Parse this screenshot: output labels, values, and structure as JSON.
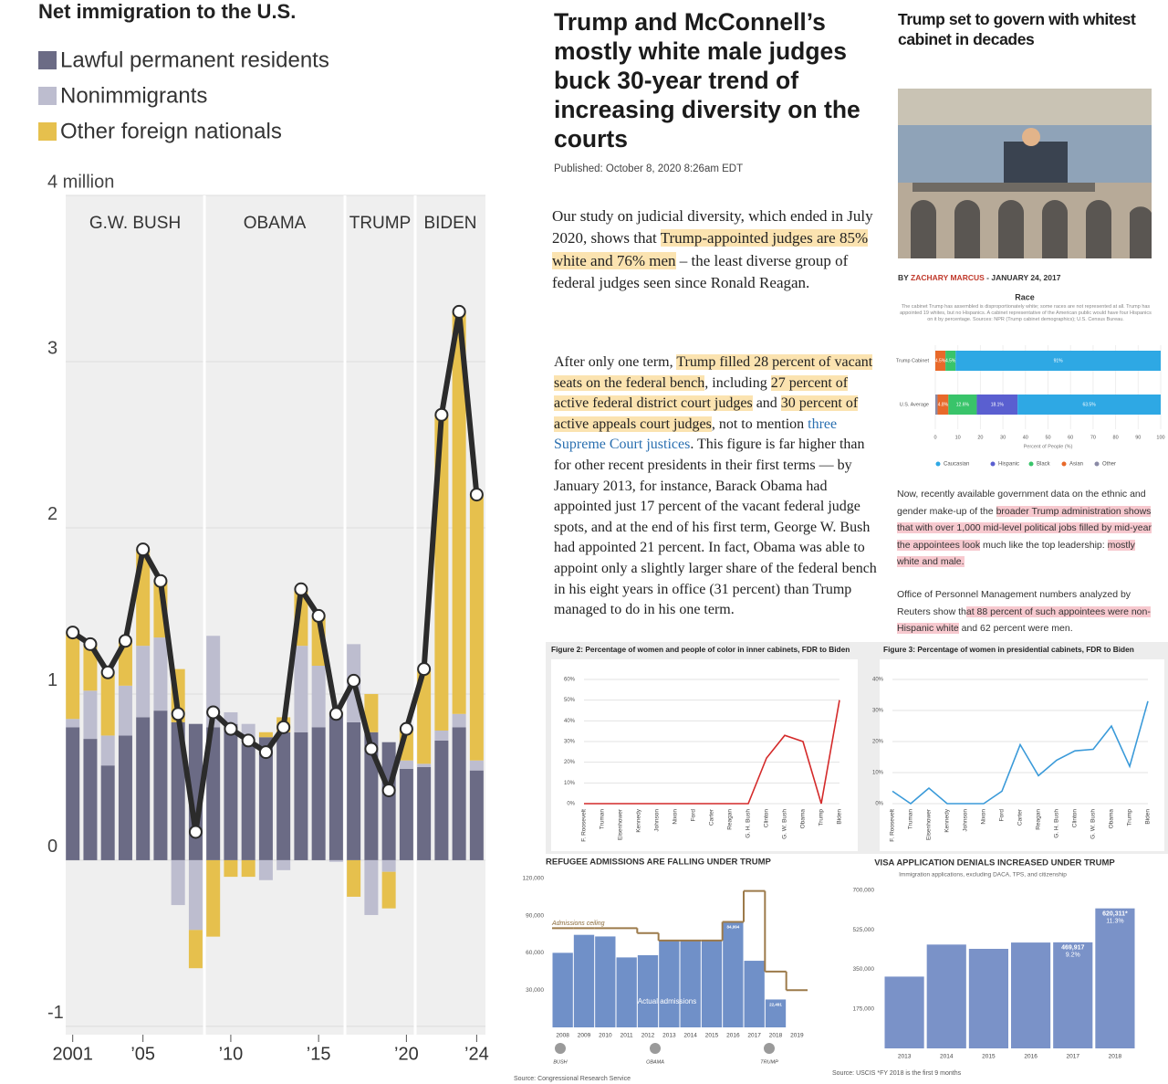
{
  "chart_data": [
    {
      "type": "stacked-bar",
      "title": "Net immigration to the U.S.",
      "x": [
        2001,
        2002,
        2003,
        2004,
        2005,
        2006,
        2007,
        2008,
        2009,
        2010,
        2011,
        2012,
        2013,
        2014,
        2015,
        2016,
        2017,
        2018,
        2019,
        2020,
        2021,
        2022,
        2023,
        2024
      ],
      "series": [
        {
          "name": "Lawful permanent residents",
          "color": "#6b6b85",
          "values": [
            0.8,
            0.73,
            0.57,
            0.75,
            0.86,
            0.9,
            0.83,
            0.82,
            0.8,
            0.82,
            0.7,
            0.74,
            0.77,
            0.77,
            0.8,
            0.88,
            0.83,
            0.77,
            0.71,
            0.55,
            0.56,
            0.72,
            0.8,
            0.54
          ]
        },
        {
          "name": "Nonimmigrants",
          "color": "#bdbdcf",
          "values": [
            0.05,
            0.29,
            0.18,
            0.3,
            0.43,
            0.44,
            -0.27,
            -0.42,
            0.55,
            0.07,
            0.12,
            -0.12,
            -0.06,
            0.52,
            0.37,
            -0.01,
            0.47,
            -0.33,
            -0.07,
            0.05,
            0.02,
            0.06,
            0.08,
            0.06
          ]
        },
        {
          "name": "Other foreign nationals",
          "color": "#e6c04d",
          "values": [
            0.52,
            0.28,
            0.38,
            0.27,
            0.58,
            0.34,
            0.32,
            -0.23,
            -0.46,
            -0.1,
            -0.1,
            0.03,
            0.09,
            0.33,
            0.3,
            0.01,
            -0.22,
            0.23,
            -0.22,
            0.19,
            0.57,
            1.9,
            2.42,
            1.6
          ]
        }
      ],
      "line": {
        "color": "#2b2b2b",
        "values": [
          1.37,
          1.3,
          1.13,
          1.32,
          1.87,
          1.68,
          0.88,
          0.17,
          0.89,
          0.79,
          0.72,
          0.65,
          0.8,
          1.63,
          1.47,
          0.88,
          1.08,
          0.67,
          0.42,
          0.79,
          1.15,
          2.68,
          3.3,
          2.2
        ]
      },
      "eras": [
        {
          "label": "G.W. BUSH",
          "start": 2000.6,
          "end": 2008.5
        },
        {
          "label": "OBAMA",
          "start": 2008.5,
          "end": 2016.5
        },
        {
          "label": "TRUMP",
          "start": 2016.5,
          "end": 2020.5
        },
        {
          "label": "BIDEN",
          "start": 2020.5,
          "end": 2024.5
        }
      ],
      "xlim": [
        2000.6,
        2024.5
      ],
      "xticks": [
        2001,
        {
          "value": 2005,
          "label": "’05"
        },
        {
          "value": 2010,
          "label": "’10"
        },
        {
          "value": 2015,
          "label": "’15"
        },
        {
          "value": 2020,
          "label": "’20"
        },
        {
          "value": 2024,
          "label": "’24"
        }
      ],
      "ylim": [
        -1.05,
        4
      ],
      "yticks": [
        -1,
        0,
        1,
        2,
        3,
        {
          "value": 4,
          "label": "4 million"
        }
      ],
      "grid": true
    },
    {
      "type": "hbar-stacked",
      "title": "Race",
      "caption": "The cabinet Trump has assembled is disproportionately white; some races are not represented at all. Trump has appointed 19 whites, but no Hispanics. A cabinet representative of the American public would have four Hispanics on it by percentage. Sources: NPR (Trump cabinet demographics); U.S. Census Bureau.",
      "categories": [
        "Trump Cabinet",
        "U.S. Average"
      ],
      "series": [
        {
          "name": "Caucasian",
          "color": "#2ea8e4",
          "values": [
            91,
            63.5
          ],
          "value_labels": [
            "91%",
            "63.5%"
          ]
        },
        {
          "name": "Hispanic",
          "color": "#5a5fd0",
          "values": [
            0,
            18.1
          ],
          "value_labels": [
            null,
            "18.1%"
          ]
        },
        {
          "name": "Black",
          "color": "#39c46a",
          "values": [
            4.5,
            12.6
          ],
          "value_labels": [
            "4.5%",
            "12.6%"
          ]
        },
        {
          "name": "Asian",
          "color": "#e8692a",
          "values": [
            4.5,
            4.8
          ],
          "value_labels": [
            "4.5%",
            "4.8%"
          ]
        },
        {
          "name": "Other",
          "color": "#8a8aa6",
          "values": [
            0,
            1
          ],
          "value_labels": [
            null,
            null
          ]
        }
      ],
      "xlabel": "Percent of People (%)",
      "xlim": [
        0,
        100
      ],
      "xticks": [
        0,
        10,
        20,
        30,
        40,
        50,
        60,
        70,
        80,
        90,
        100
      ]
    },
    {
      "type": "line",
      "title": "Figure 2: Percentage of women and people of color in inner cabinets, FDR to Biden",
      "categories": [
        "F. Roosevelt",
        "Truman",
        "Eisenhower",
        "Kennedy",
        "Johnson",
        "Nixon",
        "Ford",
        "Carter",
        "Reagan",
        "G. H. Bush",
        "Clinton",
        "G. W. Bush",
        "Obama",
        "Trump",
        "Biden"
      ],
      "color": "#d42a2a",
      "values": [
        0,
        0,
        0,
        0,
        0,
        0,
        0,
        0,
        0,
        0,
        22,
        33,
        30,
        0,
        50
      ],
      "ylim": [
        0,
        60
      ],
      "yticks": [
        {
          "value": 0,
          "label": "0%"
        },
        {
          "value": 10,
          "label": "10%"
        },
        {
          "value": 20,
          "label": "20%"
        },
        {
          "value": 30,
          "label": "30%"
        },
        {
          "value": 40,
          "label": "40%"
        },
        {
          "value": 50,
          "label": "50%"
        },
        {
          "value": 60,
          "label": "60%"
        }
      ],
      "grid": true
    },
    {
      "type": "line",
      "title": "Figure 3: Percentage of women in presidential cabinets, FDR to Biden",
      "categories": [
        "F. Roosevelt",
        "Truman",
        "Eisenhower",
        "Kennedy",
        "Johnson",
        "Nixon",
        "Ford",
        "Carter",
        "Reagan",
        "G. H. Bush",
        "Clinton",
        "G. W. Bush",
        "Obama",
        "Trump",
        "Biden"
      ],
      "color": "#3a9ad9",
      "values": [
        4,
        0,
        5,
        0,
        0,
        0,
        4,
        19,
        9,
        14,
        17,
        17.5,
        25,
        12,
        33
      ],
      "ylim": [
        0,
        40
      ],
      "yticks": [
        {
          "value": 0,
          "label": "0%"
        },
        {
          "value": 10,
          "label": "10%"
        },
        {
          "value": 20,
          "label": "20%"
        },
        {
          "value": 30,
          "label": "30%"
        },
        {
          "value": 40,
          "label": "40%"
        }
      ],
      "grid": true
    },
    {
      "type": "bar",
      "title": "REFUGEE ADMISSIONS ARE FALLING UNDER TRUMP",
      "categories": [
        "2008",
        "2009",
        "2010",
        "2011",
        "2012",
        "2013",
        "2014",
        "2015",
        "2016",
        "2017",
        "2018",
        "2019"
      ],
      "color": "#7090c8",
      "values": [
        60100,
        74600,
        73300,
        56400,
        58200,
        69900,
        70000,
        70000,
        84994,
        53700,
        22491,
        null
      ],
      "value_labels": [
        null,
        null,
        null,
        null,
        null,
        null,
        null,
        null,
        "84,994",
        null,
        "22,491",
        null
      ],
      "step_line": {
        "name": "Admissions ceiling",
        "color": "#9c7a4a",
        "values": [
          80000,
          80000,
          80000,
          80000,
          76000,
          70000,
          70000,
          70000,
          85000,
          110000,
          45000,
          30000
        ]
      },
      "bar_label": "Actual admissions",
      "presidents": [
        "BUSH",
        "OBAMA",
        "TRUMP"
      ],
      "source": "Source: Congressional Research Service",
      "ylim": [
        0,
        120000
      ],
      "yticks": [
        {
          "value": 30000,
          "label": "30,000"
        },
        {
          "value": 60000,
          "label": "60,000"
        },
        {
          "value": 90000,
          "label": "90,000"
        },
        {
          "value": 120000,
          "label": "120,000"
        }
      ],
      "grid": false
    },
    {
      "type": "bar",
      "title": "VISA APPLICATION DENIALS INCREASED UNDER TRUMP",
      "subtitle": "Immigration applications, excluding DACA, TPS, and citizenship",
      "categories": [
        "2013",
        "2014",
        "2015",
        "2016",
        "2017",
        "2018"
      ],
      "color": "#7a92c8",
      "values": [
        318000,
        460000,
        441000,
        469000,
        469917,
        620311
      ],
      "value_labels": [
        null,
        null,
        null,
        null,
        "469,917",
        "620,311*"
      ],
      "share_labels": [
        null,
        null,
        null,
        null,
        "9.2%",
        "11.3%"
      ],
      "source": "Source: USCIS *FY 2018 is the first 9 months",
      "ylim": [
        0,
        700000
      ],
      "yticks": [
        {
          "value": 175000,
          "label": "175,000"
        },
        {
          "value": 350000,
          "label": "350,000"
        },
        {
          "value": 525000,
          "label": "525,000"
        },
        {
          "value": 700000,
          "label": "700,000"
        }
      ],
      "grid": false
    }
  ],
  "article": {
    "headline": "Trump and McConnell’s mostly white male judges buck 30-year trend of increasing diversity on the courts",
    "published": "Published: October 8, 2020 8:26am EDT",
    "paragraphs": [
      [
        {
          "text": "Our study on judicial diversity, which ended in July 2020, shows that "
        },
        {
          "text": "Trump-appointed judges are 85% white and 76% men",
          "highlight": true
        },
        {
          "text": " – the least diverse group of federal judges seen since Ronald Reagan."
        }
      ],
      [
        {
          "text": "After only one term, "
        },
        {
          "text": "Trump filled 28 percent of vacant seats on the federal bench",
          "highlight": true
        },
        {
          "text": ", including "
        },
        {
          "text": "27 percent of active federal district court judges",
          "highlight": true
        },
        {
          "text": " and "
        },
        {
          "text": "30 percent of active appeals court judges",
          "highlight": true
        },
        {
          "text": ", not to mention "
        },
        {
          "text": "three Supreme Court justices",
          "link": true
        },
        {
          "text": ". This figure is far higher than for other recent presidents in their first terms — by January 2013, for instance, Barack Obama had appointed just 17 percent of the vacant federal judge spots, and at the end of his first term, George W. Bush had appointed 21 percent. In fact, Obama was able to appoint only a slightly larger share of the federal bench in his eight years in office (31 percent) than Trump managed to do in his one term."
        }
      ]
    ]
  },
  "cabinet_article": {
    "headline": "Trump set to govern with whitest cabinet in decades",
    "byline": "BY",
    "author": "ZACHARY MARCUS",
    "date": "- JANUARY 24, 2017",
    "paragraphs": [
      [
        {
          "text": "Now, recently available government data on the ethnic and gender make-up of the "
        },
        {
          "text": "broader Trump administration shows that with over 1,000 mid-level political jobs filled by mid-year the appointees look",
          "highlight": true
        },
        {
          "text": " much like the top leadership: "
        },
        {
          "text": "mostly white and male.",
          "highlight": true
        }
      ],
      [
        {
          "text": "Office of Personnel Management numbers analyzed by Reuters show th"
        },
        {
          "text": "at 88 percent of such appointees were non-Hispanic white",
          "highlight": true
        },
        {
          "text": " and 62 percent were men."
        }
      ]
    ]
  }
}
